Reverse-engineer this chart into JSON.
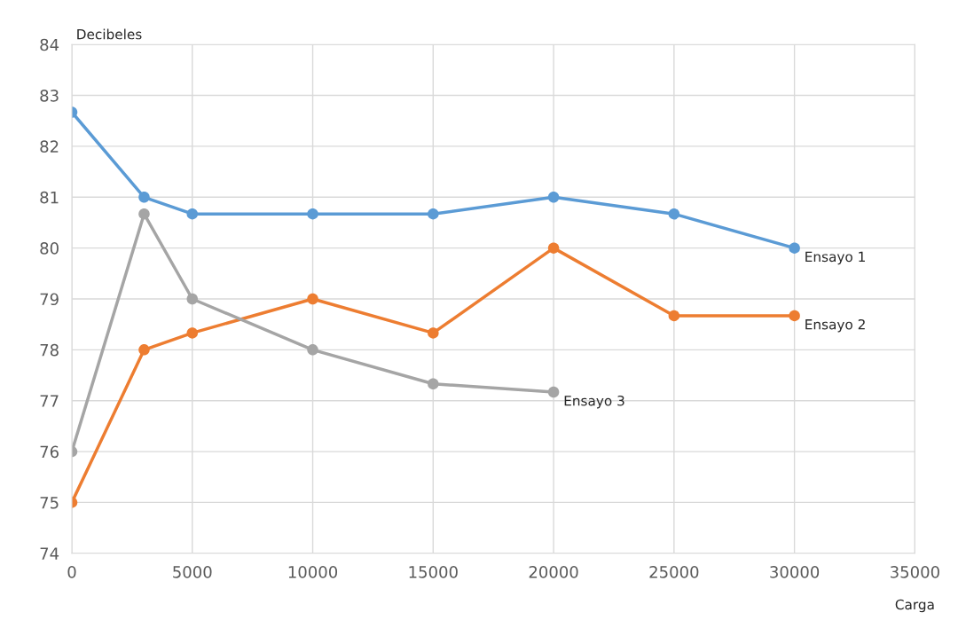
{
  "chart_data": {
    "type": "line",
    "ylabel": "Decibeles",
    "xlabel": "Carga",
    "x": [
      0,
      3000,
      5000,
      10000,
      15000,
      20000,
      25000,
      30000
    ],
    "series": [
      {
        "name": "Ensayo 1",
        "color": "#5b9bd5",
        "values": [
          82.67,
          81,
          80.67,
          80.67,
          80.67,
          81,
          80.67,
          80
        ]
      },
      {
        "name": "Ensayo 2",
        "color": "#ed7d31",
        "values": [
          75,
          78,
          78.33,
          79,
          78.33,
          80,
          78.67,
          78.67
        ]
      },
      {
        "name": "Ensayo 3",
        "color": "#a5a5a5",
        "x": [
          0,
          3000,
          5000,
          10000,
          15000,
          20000
        ],
        "values": [
          76,
          80.67,
          79,
          78,
          77.33,
          77.17
        ]
      }
    ],
    "xlim": [
      0,
      35000
    ],
    "xticks": [
      0,
      5000,
      10000,
      15000,
      20000,
      25000,
      30000,
      35000
    ],
    "ylim": [
      74,
      84
    ],
    "yticks": [
      74,
      75,
      76,
      77,
      78,
      79,
      80,
      81,
      82,
      83,
      84
    ],
    "grid": true,
    "legend": false,
    "marker": "circle",
    "line_style": "solid"
  }
}
